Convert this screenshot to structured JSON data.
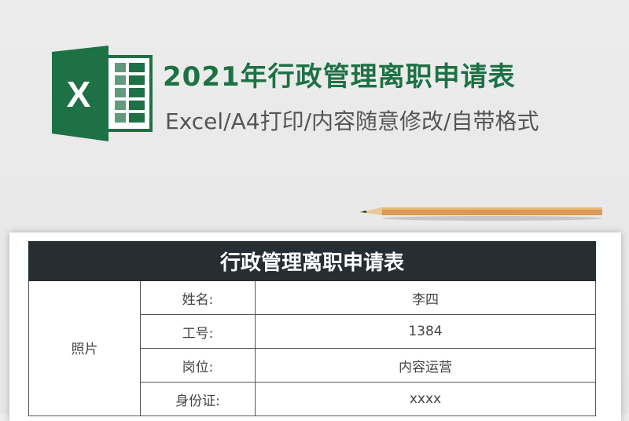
{
  "header": {
    "title": "2021年行政管理离职申请表",
    "subtitle": "Excel/A4打印/内容随意修改/自带格式",
    "logo_icon": "excel-logo-icon",
    "brand_color": "#1e7145"
  },
  "form": {
    "title": "行政管理离职申请表",
    "photo_label": "照片",
    "rows": [
      {
        "label": "姓名:",
        "value": "李四"
      },
      {
        "label": "工号:",
        "value": "1384"
      },
      {
        "label": "岗位:",
        "value": "内容运营"
      },
      {
        "label": "身份证:",
        "value": "xxxx"
      }
    ]
  }
}
